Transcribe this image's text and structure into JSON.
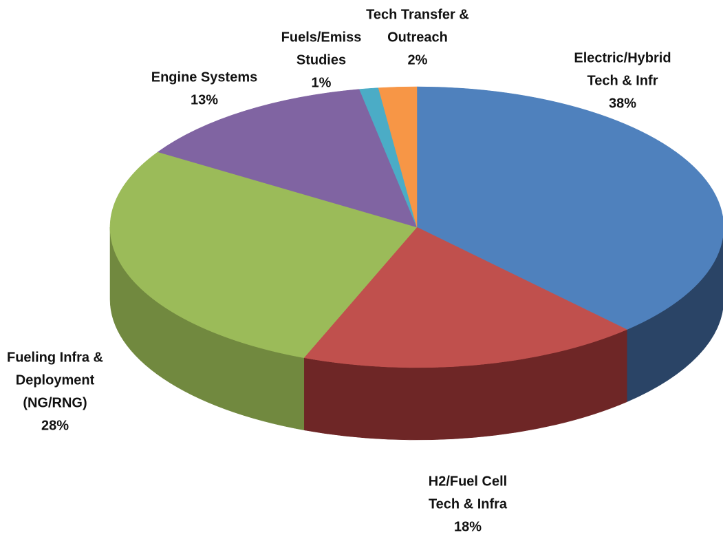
{
  "chart_data": {
    "type": "pie",
    "categories": [
      [
        "Electric/Hybrid",
        "Tech & Infr"
      ],
      [
        "H2/Fuel Cell",
        "Tech & Infra"
      ],
      [
        "Fueling Infra &",
        "Deployment",
        "(NG/RNG)"
      ],
      [
        "Engine Systems"
      ],
      [
        "Fuels/Emiss",
        "Studies"
      ],
      [
        "Tech Transfer &",
        "Outreach"
      ]
    ],
    "values": [
      38,
      18,
      28,
      13,
      1,
      2
    ],
    "value_labels": [
      "38%",
      "18%",
      "28%",
      "13%",
      "1%",
      "2%"
    ],
    "colors": [
      "#4f81bd",
      "#c0504d",
      "#9bbb59",
      "#8064a2",
      "#4bacc6",
      "#f79646"
    ],
    "side_colors": [
      "#2a4466",
      "#6e2626",
      "#71893f",
      "#5a4676",
      "#2f7d90",
      "#b86a2c"
    ]
  }
}
